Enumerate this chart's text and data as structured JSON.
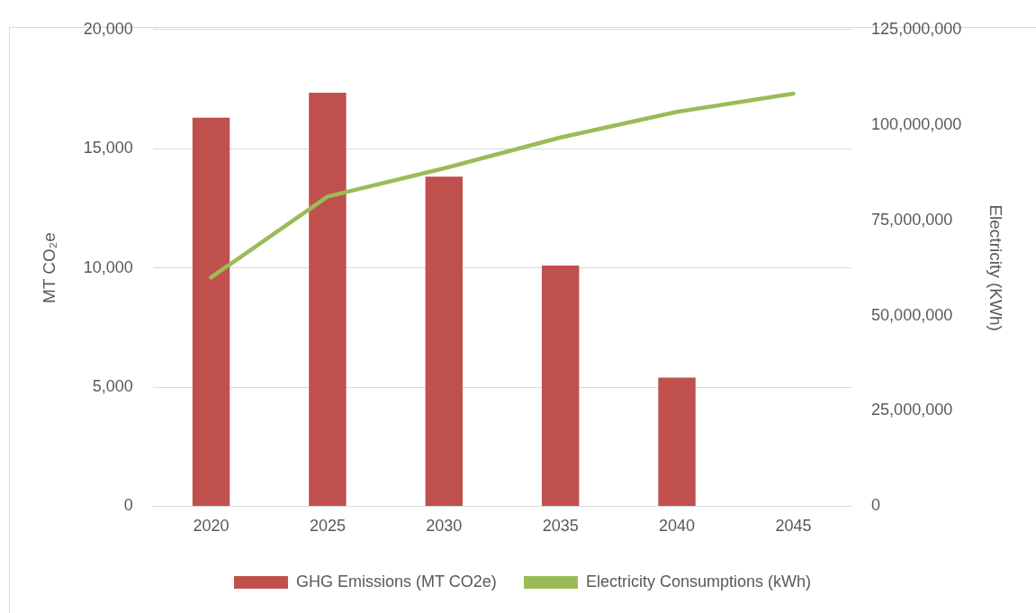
{
  "chart_data": {
    "type": "bar",
    "categories": [
      "2020",
      "2025",
      "2030",
      "2035",
      "2040",
      "2045"
    ],
    "series": [
      {
        "name": "GHG Emissions (MT CO2e)",
        "color": "#c0504d",
        "values": [
          16300,
          17350,
          13830,
          10100,
          5400,
          null
        ]
      },
      {
        "name": "Electricity Consumptions (kWh)",
        "type": "line",
        "axis": "y2",
        "color": "#9bbb59",
        "values": [
          60000000,
          81200000,
          88600000,
          96700000,
          103400000,
          108200000
        ]
      }
    ],
    "ylabel": "MT CO₂e",
    "y2label": "Electricity (KWh)",
    "ylim": [
      0,
      20000
    ],
    "yticks": [
      {
        "value": 0,
        "label": "0"
      },
      {
        "value": 5000,
        "label": "5,000"
      },
      {
        "value": 10000,
        "label": "10,000"
      },
      {
        "value": 15000,
        "label": "15,000"
      },
      {
        "value": 20000,
        "label": "20,000"
      }
    ],
    "y2lim": [
      0,
      125000000
    ],
    "y2ticks": [
      {
        "value": 0,
        "label": "0"
      },
      {
        "value": 25000000,
        "label": "25,000,000"
      },
      {
        "value": 50000000,
        "label": "50,000,000"
      },
      {
        "value": 75000000,
        "label": "75,000,000"
      },
      {
        "value": 100000000,
        "label": "100,000,000"
      },
      {
        "value": 125000000,
        "label": "125,000,000"
      }
    ],
    "grid": "y",
    "legend": "bottom",
    "marker": "none",
    "line_style": "solid"
  }
}
